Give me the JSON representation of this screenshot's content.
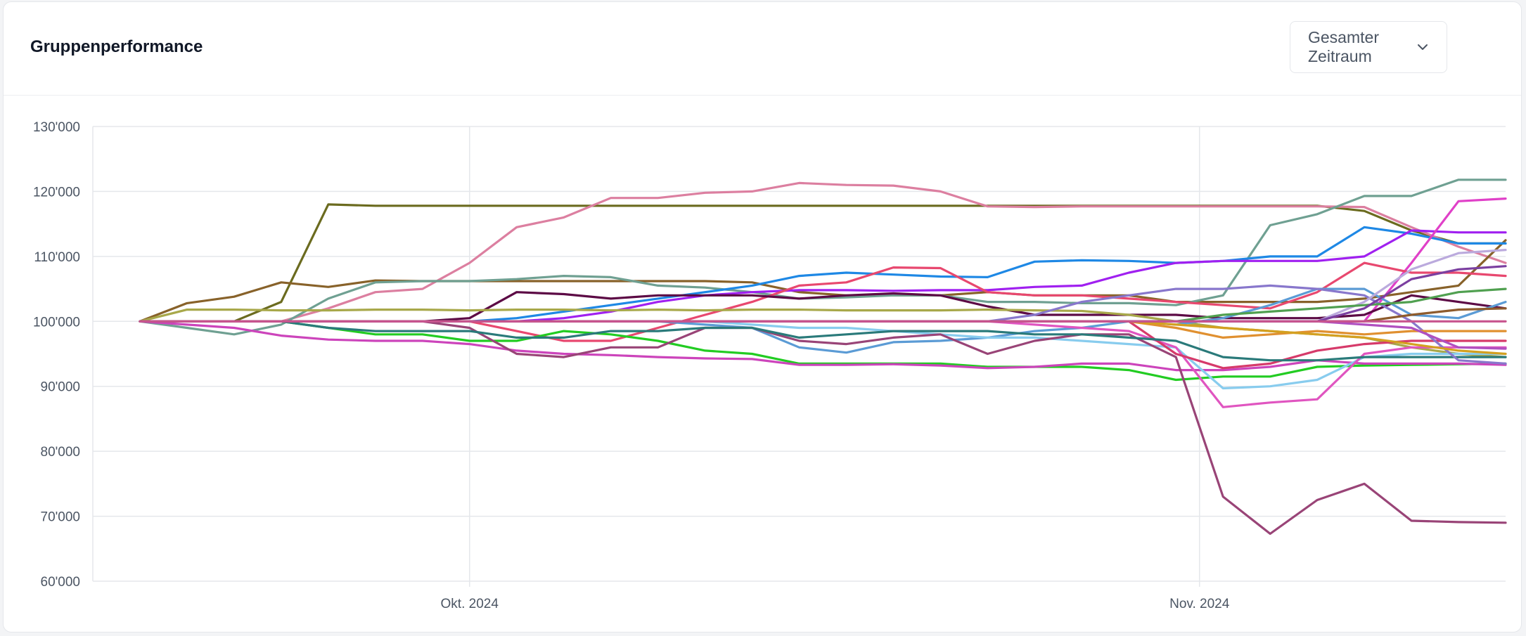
{
  "header": {
    "title": "Gruppenperformance",
    "range_select": {
      "selected": "Gesamter Zeitraum",
      "icon": "chevron-down-icon"
    }
  },
  "chart_data": {
    "type": "line",
    "title": "",
    "xlabel": "",
    "ylabel": "",
    "x_tick_labels": [
      "Okt. 2024",
      "Nov. 2024"
    ],
    "y_tick_labels": [
      "60'000",
      "70'000",
      "80'000",
      "90'000",
      "100'000",
      "110'000",
      "120'000",
      "130'000"
    ],
    "ylim": [
      60000,
      130000
    ],
    "grid": true,
    "legend": "none",
    "x": [
      "2024-09-17",
      "2024-09-19",
      "2024-09-21",
      "2024-09-23",
      "2024-09-25",
      "2024-09-27",
      "2024-09-29",
      "2024-10-01",
      "2024-10-03",
      "2024-10-05",
      "2024-10-07",
      "2024-10-09",
      "2024-10-11",
      "2024-10-13",
      "2024-10-15",
      "2024-10-17",
      "2024-10-19",
      "2024-10-21",
      "2024-10-23",
      "2024-10-25",
      "2024-10-27",
      "2024-10-29",
      "2024-10-31",
      "2024-11-02",
      "2024-11-04",
      "2024-11-06",
      "2024-11-08",
      "2024-11-10",
      "2024-11-12",
      "2024-11-14"
    ],
    "series": [
      {
        "color": "#6b6b1f",
        "values": [
          100000,
          100000,
          100000,
          103000,
          118000,
          117800,
          117800,
          117800,
          117800,
          117800,
          117800,
          117800,
          117800,
          117800,
          117800,
          117800,
          117800,
          117800,
          117800,
          117800,
          117800,
          117800,
          117800,
          117800,
          117800,
          117800,
          117000,
          114000,
          112000,
          112000
        ]
      },
      {
        "color": "#dc7fa0",
        "values": [
          100000,
          100000,
          100000,
          100000,
          102000,
          104500,
          105000,
          109000,
          114500,
          116000,
          119000,
          119000,
          119800,
          120000,
          121300,
          121000,
          120900,
          120000,
          117700,
          117600,
          117700,
          117700,
          117700,
          117700,
          117700,
          117700,
          117600,
          114500,
          111500,
          109000
        ]
      },
      {
        "color": "#88622a",
        "values": [
          100000,
          102800,
          103800,
          106000,
          105300,
          106300,
          106200,
          106200,
          106200,
          106200,
          106200,
          106200,
          106200,
          106000,
          104500,
          104000,
          104000,
          104000,
          104500,
          104000,
          104000,
          104000,
          103000,
          103000,
          103000,
          103000,
          103500,
          104500,
          105500,
          112500
        ]
      },
      {
        "color": "#6fa092",
        "values": [
          100000,
          99000,
          98000,
          99500,
          103500,
          106000,
          106200,
          106200,
          106500,
          107000,
          106800,
          105500,
          105200,
          104500,
          103500,
          103700,
          104000,
          104000,
          103000,
          103000,
          102800,
          102800,
          102500,
          104000,
          114800,
          116500,
          119300,
          119300,
          121800,
          121800
        ]
      },
      {
        "color": "#1e88e5",
        "values": [
          100000,
          100000,
          100000,
          100000,
          100000,
          100000,
          100000,
          100000,
          100500,
          101500,
          102500,
          103500,
          104500,
          105500,
          107000,
          107500,
          107200,
          106900,
          106800,
          109200,
          109400,
          109300,
          109000,
          109300,
          110000,
          110000,
          114500,
          113500,
          112000,
          112000
        ]
      },
      {
        "color": "#a020f0",
        "values": [
          100000,
          100000,
          100000,
          100000,
          100000,
          100000,
          100000,
          100000,
          100000,
          100500,
          101500,
          103000,
          104000,
          104500,
          104800,
          104800,
          104700,
          104800,
          104800,
          105300,
          105500,
          107500,
          109000,
          109300,
          109300,
          109300,
          110000,
          114000,
          113700,
          113700
        ]
      },
      {
        "color": "#e040c8",
        "values": [
          100000,
          100000,
          100000,
          100000,
          100000,
          100000,
          100000,
          100000,
          100000,
          100000,
          100000,
          100000,
          100000,
          100000,
          100000,
          100000,
          100000,
          100000,
          100000,
          100000,
          100000,
          100000,
          100000,
          100000,
          100000,
          100000,
          100000,
          109000,
          118500,
          118900
        ]
      },
      {
        "color": "#e8486f",
        "values": [
          100000,
          100000,
          100000,
          100000,
          100000,
          100000,
          100000,
          100000,
          98500,
          97000,
          97000,
          99000,
          101000,
          103000,
          105500,
          106000,
          108300,
          108200,
          104500,
          104000,
          104000,
          103500,
          103000,
          102500,
          102000,
          104500,
          109000,
          107500,
          107500,
          107000
        ]
      },
      {
        "color": "#5c0a45",
        "values": [
          100000,
          100000,
          100000,
          100000,
          100000,
          100000,
          100000,
          100500,
          104500,
          104200,
          103500,
          104000,
          104000,
          104000,
          103500,
          104000,
          104300,
          104000,
          102300,
          101000,
          101000,
          101000,
          101000,
          100500,
          100500,
          100500,
          101000,
          104000,
          103000,
          102000
        ]
      },
      {
        "color": "#a8a84a",
        "values": [
          100000,
          101800,
          101800,
          101700,
          101700,
          101800,
          101800,
          101700,
          101800,
          101800,
          101700,
          101800,
          101700,
          101800,
          101800,
          101700,
          101700,
          101700,
          101800,
          101700,
          101600,
          101000,
          100000,
          99000,
          98500,
          98000,
          97500,
          96000,
          95000,
          94500
        ]
      },
      {
        "color": "#5b9bd5",
        "values": [
          100000,
          100000,
          100000,
          100000,
          100000,
          100000,
          100000,
          100000,
          100000,
          100000,
          100000,
          100000,
          99500,
          99000,
          96000,
          95200,
          96800,
          97000,
          97500,
          98500,
          99000,
          100000,
          99500,
          100500,
          102500,
          105000,
          105000,
          101000,
          100500,
          103000
        ]
      },
      {
        "color": "#22cc22",
        "values": [
          100000,
          100000,
          100000,
          100000,
          99000,
          98000,
          98000,
          97000,
          97000,
          98500,
          98000,
          97000,
          95500,
          95000,
          93500,
          93500,
          93500,
          93500,
          93000,
          93000,
          93000,
          92500,
          91000,
          91500,
          91500,
          93000,
          93200,
          93300,
          93400,
          93500
        ]
      },
      {
        "color": "#cc44bb",
        "values": [
          100000,
          99500,
          99000,
          97800,
          97200,
          97000,
          97000,
          96500,
          95500,
          95000,
          94800,
          94500,
          94300,
          94200,
          93300,
          93300,
          93400,
          93200,
          92800,
          93000,
          93500,
          93500,
          92500,
          92500,
          93000,
          94000,
          93500,
          93500,
          93500,
          93300
        ]
      },
      {
        "color": "#88ccee",
        "values": [
          100000,
          100000,
          100000,
          100000,
          100000,
          100000,
          100000,
          100000,
          100000,
          100000,
          100000,
          100000,
          100000,
          99500,
          99000,
          99000,
          98500,
          98000,
          97500,
          97500,
          97000,
          96500,
          96000,
          89700,
          90000,
          91000,
          94500,
          95000,
          95000,
          95000
        ]
      },
      {
        "color": "#e055c0",
        "values": [
          100000,
          100000,
          100000,
          100000,
          100000,
          100000,
          100000,
          100000,
          100000,
          100000,
          100000,
          100000,
          100000,
          100000,
          100000,
          100000,
          100000,
          100000,
          100000,
          99500,
          99000,
          98500,
          96000,
          86800,
          87500,
          88000,
          95000,
          96000,
          96000,
          96000
        ]
      },
      {
        "color": "#d63a6a",
        "values": [
          100000,
          100000,
          100000,
          100000,
          100000,
          100000,
          100000,
          100000,
          100000,
          100000,
          100000,
          100000,
          100000,
          100000,
          100000,
          100000,
          100000,
          100000,
          100000,
          100000,
          100000,
          100000,
          95000,
          92800,
          93500,
          95500,
          96500,
          97000,
          97000,
          97000
        ]
      },
      {
        "color": "#994477",
        "values": [
          100000,
          100000,
          100000,
          100000,
          100000,
          100000,
          100000,
          99000,
          95000,
          94500,
          96000,
          96000,
          99000,
          99000,
          97000,
          96500,
          97500,
          98000,
          95000,
          97000,
          98000,
          98000,
          94500,
          73000,
          67300,
          72500,
          75000,
          69300,
          69100,
          69000
        ]
      },
      {
        "color": "#2a7a7a",
        "values": [
          100000,
          100000,
          100000,
          100000,
          99000,
          98500,
          98500,
          98500,
          97500,
          97500,
          98500,
          98500,
          99000,
          99000,
          97500,
          98000,
          98500,
          98500,
          98500,
          98000,
          98000,
          97500,
          97000,
          94500,
          94000,
          94000,
          94500,
          94500,
          94500,
          94500
        ]
      },
      {
        "color": "#8877cc",
        "values": [
          100000,
          100000,
          100000,
          100000,
          100000,
          100000,
          100000,
          100000,
          100000,
          100000,
          100000,
          100000,
          100000,
          100000,
          100000,
          100000,
          100000,
          100000,
          100000,
          101000,
          103000,
          104000,
          105000,
          105000,
          105500,
          105000,
          104000,
          100000,
          94000,
          93500
        ]
      },
      {
        "color": "#bbaadd",
        "values": [
          100000,
          100000,
          100000,
          100000,
          100000,
          100000,
          100000,
          100000,
          100000,
          100000,
          100000,
          100000,
          100000,
          100000,
          100000,
          100000,
          100000,
          100000,
          100000,
          100000,
          100000,
          100000,
          100000,
          100000,
          100000,
          100000,
          103000,
          108000,
          110500,
          111000
        ]
      },
      {
        "color": "#e09030",
        "values": [
          100000,
          100000,
          100000,
          100000,
          100000,
          100000,
          100000,
          100000,
          100000,
          100000,
          100000,
          100000,
          100000,
          100000,
          100000,
          100000,
          100000,
          100000,
          100000,
          100000,
          100000,
          100000,
          99000,
          97500,
          98000,
          98500,
          98000,
          98500,
          98500,
          98500
        ]
      },
      {
        "color": "#50a050",
        "values": [
          100000,
          100000,
          100000,
          100000,
          100000,
          100000,
          100000,
          100000,
          100000,
          100000,
          100000,
          100000,
          100000,
          100000,
          100000,
          100000,
          100000,
          100000,
          100000,
          100000,
          100000,
          100000,
          100000,
          101000,
          101500,
          102000,
          102500,
          103000,
          104500,
          105000
        ]
      },
      {
        "color": "#8e5b2c",
        "values": [
          100000,
          100000,
          100000,
          100000,
          100000,
          100000,
          100000,
          100000,
          100000,
          100000,
          100000,
          100000,
          100000,
          100000,
          100000,
          100000,
          100000,
          100000,
          100000,
          100000,
          100000,
          100000,
          100000,
          100000,
          100000,
          100000,
          100000,
          101000,
          101800,
          102000
        ]
      },
      {
        "color": "#b04fc0",
        "values": [
          100000,
          100000,
          100000,
          100000,
          100000,
          100000,
          100000,
          100000,
          100000,
          100000,
          100000,
          100000,
          100000,
          100000,
          100000,
          100000,
          100000,
          100000,
          100000,
          100000,
          100000,
          100000,
          100000,
          100000,
          100000,
          100000,
          99500,
          99000,
          96000,
          95800
        ]
      },
      {
        "color": "#d4a020",
        "values": [
          100000,
          100000,
          100000,
          100000,
          100000,
          100000,
          100000,
          100000,
          100000,
          100000,
          100000,
          100000,
          100000,
          100000,
          100000,
          100000,
          100000,
          100000,
          100000,
          100000,
          100000,
          100000,
          99500,
          99000,
          98500,
          98000,
          97500,
          96500,
          95500,
          95000
        ]
      },
      {
        "color": "#7b3fa0",
        "values": [
          100000,
          100000,
          100000,
          100000,
          100000,
          100000,
          100000,
          100000,
          100000,
          100000,
          100000,
          100000,
          100000,
          100000,
          100000,
          100000,
          100000,
          100000,
          100000,
          100000,
          100000,
          100000,
          100000,
          100000,
          100000,
          100000,
          102000,
          106500,
          108000,
          108500
        ]
      },
      {
        "color": "#c8548e",
        "values": [
          100000,
          100000,
          100000,
          100000,
          100000,
          100000,
          100000,
          100000,
          100000,
          100000,
          100000,
          100000,
          100000,
          100000,
          100000,
          100000,
          100000,
          100000,
          100000,
          100000,
          100000,
          100000,
          100000,
          100000,
          100000,
          100000,
          100000,
          100000,
          100000,
          100000
        ]
      }
    ]
  }
}
